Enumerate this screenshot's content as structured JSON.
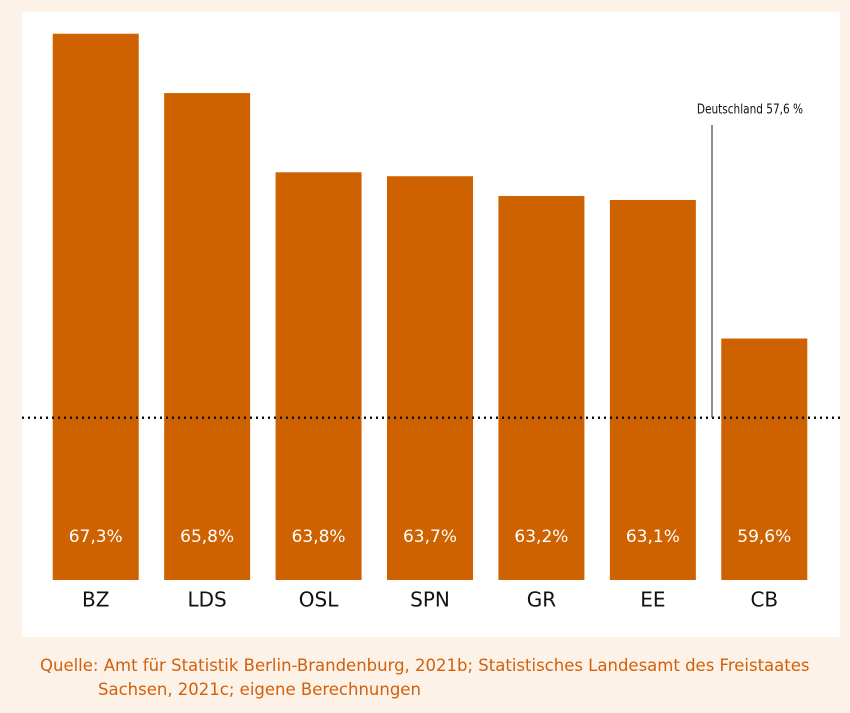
{
  "chart_data": {
    "type": "bar",
    "categories": [
      "BZ",
      "LDS",
      "OSL",
      "SPN",
      "GR",
      "EE",
      "CB"
    ],
    "values": [
      67.3,
      65.8,
      63.8,
      63.7,
      63.2,
      63.1,
      59.6
    ],
    "value_labels": [
      "67,3%",
      "65,8%",
      "63,8%",
      "63,7%",
      "63,2%",
      "63,1%",
      "59,6%"
    ],
    "color": "#cf6200",
    "ylim": [
      53.5,
      68
    ],
    "reference_line": {
      "value": 57.6,
      "label": "Deutschland 57,6 %"
    },
    "source": "Quelle: Amt für Statistik Berlin-Brandenburg, 2021b; Statistisches Landesamt des Freistaates Sachsen, 2021c; eigene Berechnungen"
  }
}
